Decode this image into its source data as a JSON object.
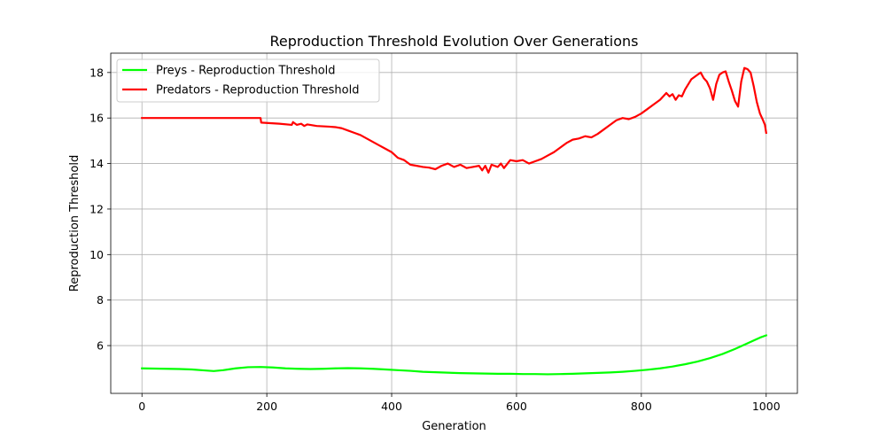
{
  "chart_data": {
    "type": "line",
    "title": "Reproduction Threshold Evolution Over Generations",
    "xlabel": "Generation",
    "ylabel": "Reproduction Threshold",
    "xlim": [
      -50,
      1050
    ],
    "ylim": [
      3.9,
      18.85
    ],
    "xticks": [
      0,
      200,
      400,
      600,
      800,
      1000
    ],
    "yticks": [
      6,
      8,
      10,
      12,
      14,
      16,
      18
    ],
    "grid": true,
    "legend_position": "top-left",
    "series": [
      {
        "name": "Preys - Reproduction Threshold",
        "color": "#00ff00",
        "x": [
          0,
          20,
          40,
          60,
          80,
          100,
          115,
          130,
          150,
          170,
          190,
          210,
          230,
          250,
          270,
          290,
          310,
          330,
          350,
          370,
          390,
          410,
          430,
          450,
          470,
          490,
          510,
          530,
          550,
          570,
          590,
          610,
          630,
          650,
          670,
          690,
          710,
          730,
          750,
          770,
          790,
          810,
          830,
          850,
          870,
          890,
          910,
          930,
          950,
          970,
          990,
          1000
        ],
        "values": [
          5.0,
          4.99,
          4.98,
          4.97,
          4.95,
          4.91,
          4.88,
          4.92,
          5.0,
          5.05,
          5.06,
          5.04,
          5.0,
          4.98,
          4.97,
          4.98,
          5.0,
          5.01,
          5.0,
          4.98,
          4.95,
          4.92,
          4.89,
          4.85,
          4.83,
          4.81,
          4.79,
          4.78,
          4.77,
          4.76,
          4.76,
          4.75,
          4.75,
          4.74,
          4.75,
          4.76,
          4.78,
          4.8,
          4.82,
          4.85,
          4.89,
          4.94,
          5.0,
          5.08,
          5.18,
          5.3,
          5.45,
          5.63,
          5.85,
          6.1,
          6.35,
          6.45
        ]
      },
      {
        "name": "Predators - Reproduction Threshold",
        "color": "#ff0000",
        "x": [
          0,
          190,
          191,
          220,
          240,
          242,
          248,
          255,
          260,
          265,
          280,
          300,
          310,
          320,
          330,
          340,
          350,
          360,
          370,
          380,
          390,
          400,
          410,
          420,
          430,
          440,
          450,
          460,
          470,
          480,
          490,
          500,
          510,
          520,
          530,
          540,
          545,
          550,
          555,
          560,
          570,
          575,
          580,
          590,
          600,
          610,
          620,
          630,
          640,
          650,
          660,
          670,
          680,
          690,
          700,
          710,
          720,
          730,
          740,
          750,
          760,
          770,
          780,
          790,
          800,
          810,
          820,
          830,
          840,
          845,
          850,
          855,
          860,
          865,
          870,
          880,
          890,
          895,
          900,
          905,
          910,
          915,
          920,
          925,
          930,
          935,
          940,
          945,
          950,
          955,
          960,
          965,
          970,
          975,
          980,
          985,
          990,
          995,
          998,
          1000
        ],
        "values": [
          16.0,
          16.0,
          15.8,
          15.75,
          15.7,
          15.82,
          15.7,
          15.75,
          15.65,
          15.72,
          15.65,
          15.62,
          15.6,
          15.55,
          15.45,
          15.35,
          15.25,
          15.1,
          14.95,
          14.8,
          14.65,
          14.5,
          14.25,
          14.15,
          13.95,
          13.9,
          13.85,
          13.82,
          13.75,
          13.9,
          14.0,
          13.85,
          13.95,
          13.8,
          13.85,
          13.9,
          13.7,
          13.9,
          13.6,
          13.95,
          13.85,
          14.0,
          13.8,
          14.15,
          14.1,
          14.15,
          14.0,
          14.1,
          14.2,
          14.35,
          14.5,
          14.7,
          14.9,
          15.05,
          15.1,
          15.2,
          15.15,
          15.3,
          15.5,
          15.7,
          15.9,
          16.0,
          15.95,
          16.05,
          16.2,
          16.4,
          16.6,
          16.8,
          17.1,
          16.95,
          17.05,
          16.8,
          17.0,
          16.95,
          17.25,
          17.7,
          17.9,
          18.0,
          17.75,
          17.6,
          17.3,
          16.8,
          17.5,
          17.9,
          18.0,
          18.05,
          17.6,
          17.2,
          16.75,
          16.5,
          17.6,
          18.2,
          18.15,
          18.0,
          17.4,
          16.7,
          16.2,
          15.9,
          15.7,
          15.35
        ]
      }
    ]
  }
}
